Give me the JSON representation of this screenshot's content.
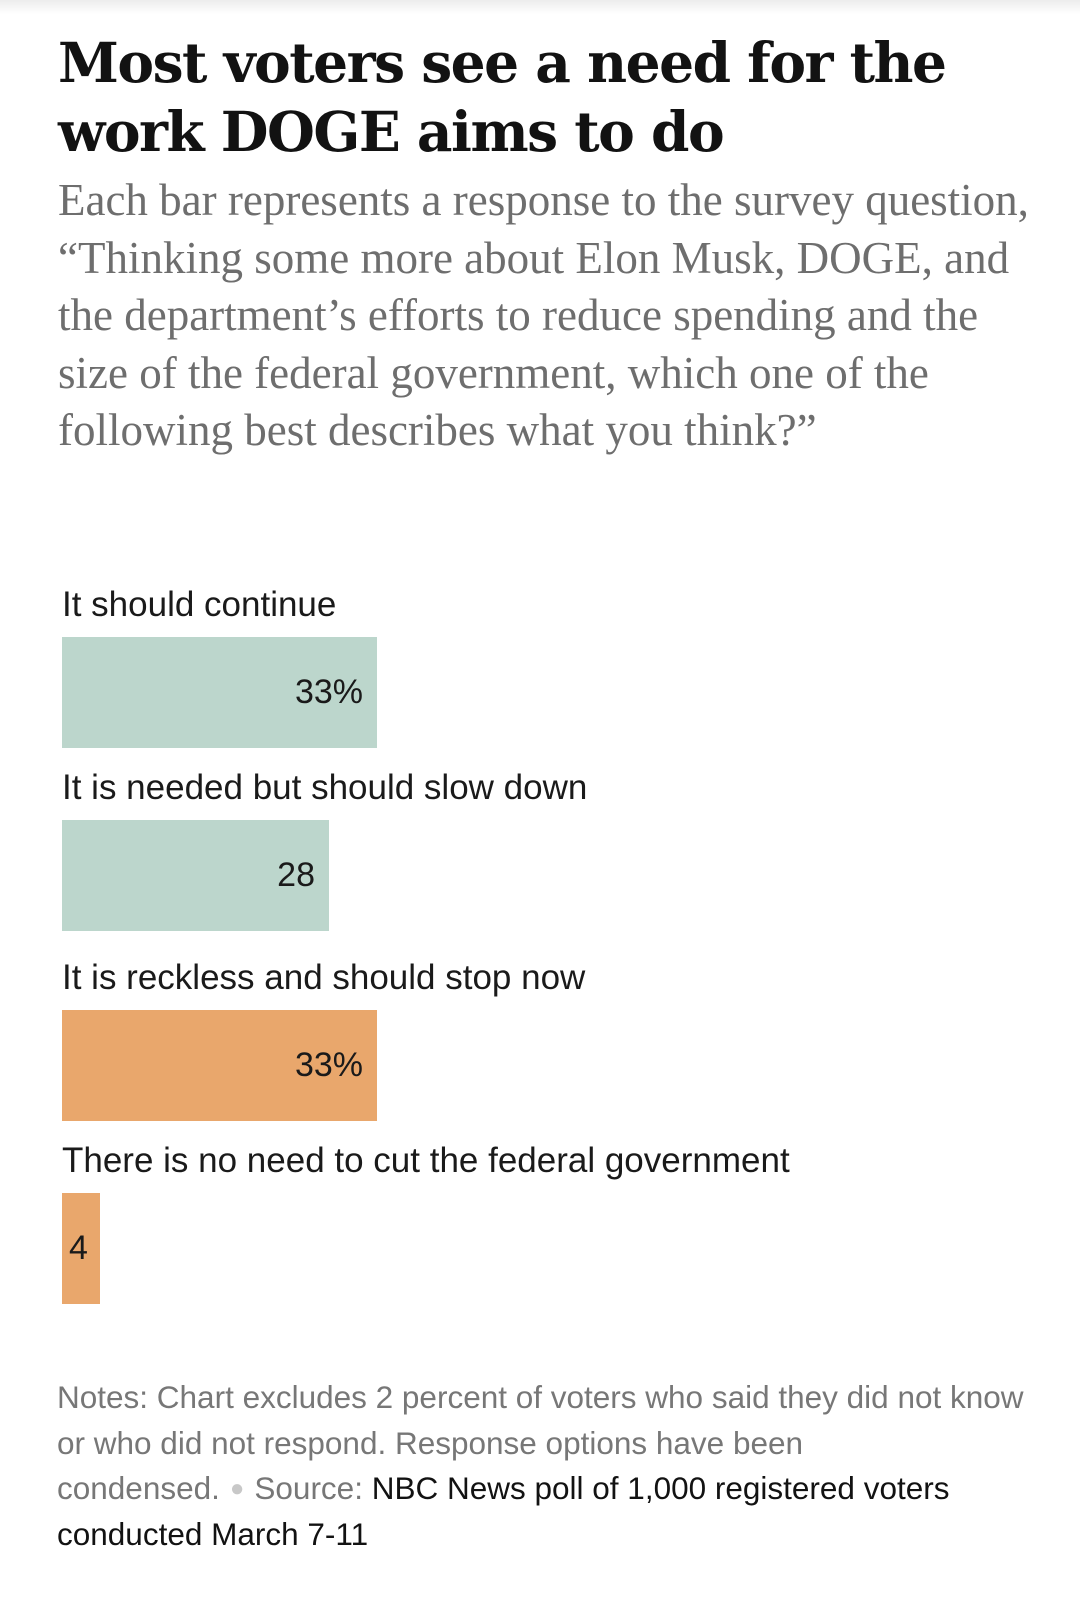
{
  "headline": "Most voters see a need for the work DOGE aims to do",
  "dek": "Each bar represents a response to the survey question, “Thinking some more about Elon Musk, DOGE, and the department’s efforts to reduce spending and the size of the federal government, which one of the following best describes what you think?”",
  "chart_data": {
    "type": "bar",
    "orientation": "horizontal",
    "categories": [
      "It should continue",
      "It is needed but should slow down",
      "It is reckless and should stop now",
      "There is no need to cut the federal government"
    ],
    "values": [
      33,
      28,
      33,
      4
    ],
    "value_labels": [
      "33%",
      "28",
      "33%",
      "4"
    ],
    "colors": [
      "#bcd6cc",
      "#bcd6cc",
      "#e9a76c",
      "#e9a76c"
    ],
    "title": "Most voters see a need for the work DOGE aims to do",
    "xlabel": "",
    "ylabel": "",
    "xlim": [
      0,
      100
    ],
    "grid": false
  },
  "notes": {
    "text": "Notes: Chart excludes 2 percent of voters who said they did not know or who did not respond. Response options have been condensed.",
    "source_label": "Source:",
    "source_text": "NBC News poll of 1,000 registered voters conducted March 7-11"
  }
}
